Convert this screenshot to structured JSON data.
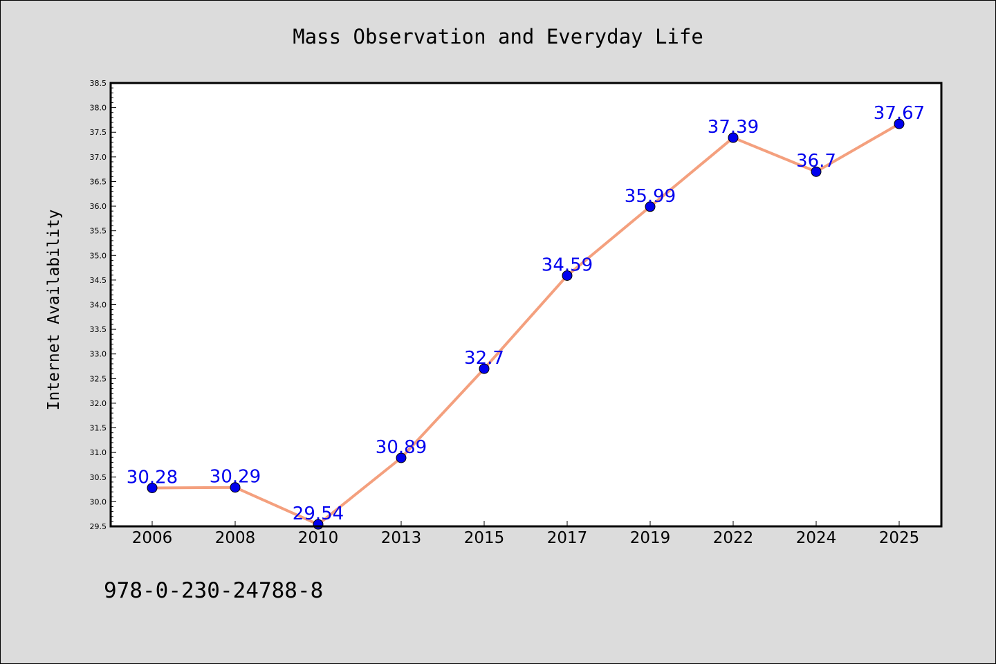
{
  "chart_data": {
    "type": "line",
    "title": "Mass Observation and Everyday Life",
    "xlabel": "",
    "ylabel": "Internet Availability",
    "categories": [
      "2006",
      "2008",
      "2010",
      "2013",
      "2015",
      "2017",
      "2019",
      "2022",
      "2024",
      "2025"
    ],
    "series": [
      {
        "values": [
          30.28,
          30.29,
          29.54,
          30.89,
          32.7,
          34.59,
          35.99,
          37.39,
          36.7,
          37.67
        ],
        "labels": [
          "30.28",
          "30.29",
          "29.54",
          "30.89",
          "32.7",
          "34.59",
          "35.99",
          "37.39",
          "36.7",
          "37.67"
        ]
      }
    ],
    "ylim": [
      29.5,
      38.5
    ],
    "yticks": [
      "29.5",
      "30.0",
      "30.5",
      "31.0",
      "31.5",
      "32.0",
      "32.5",
      "33.0",
      "33.5",
      "34.0",
      "34.5",
      "35.0",
      "35.5",
      "36.0",
      "36.5",
      "37.0",
      "37.5",
      "38.0",
      "38.5"
    ],
    "grid": false,
    "legend": "none",
    "colors": {
      "line": "#f4a07e",
      "marker": "#0000ee",
      "label": "#0000ee",
      "plot_bg": "#ffffff",
      "page_bg": "#dcdcdc"
    }
  },
  "footnote": "978-0-230-24788-8"
}
